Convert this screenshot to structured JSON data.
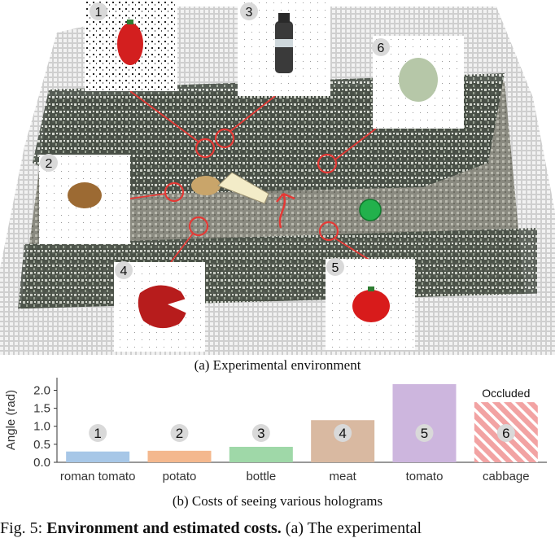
{
  "figure": {
    "caption_a": "(a) Experimental environment",
    "caption_b": "(b) Costs of seeing various holograms",
    "caption_label": "Fig. 5:",
    "caption_title": "Environment and estimated costs.",
    "caption_rest": "(a) The experimental"
  },
  "scene": {
    "hologram_numbers": [
      "1",
      "2",
      "3",
      "4",
      "5",
      "6"
    ],
    "marker_color": "#e53935",
    "goal_color": "#22b14c"
  },
  "chart_data": {
    "type": "bar",
    "categories": [
      "roman tomato",
      "potato",
      "bottle",
      "meat",
      "tomato",
      "cabbage"
    ],
    "values": [
      0.3,
      0.32,
      0.43,
      1.17,
      2.17,
      1.67
    ],
    "bar_labels": [
      "1",
      "2",
      "3",
      "4",
      "5",
      "6"
    ],
    "colors": [
      "#a7c7e7",
      "#f4b88e",
      "#9fd8a8",
      "#d9b9a1",
      "#cdb6de",
      "#f2a3a3"
    ],
    "hatched": [
      false,
      false,
      false,
      false,
      false,
      true
    ],
    "annotations": [
      {
        "category": "cabbage",
        "text": "Occluded"
      }
    ],
    "ylabel": "Angle (rad)",
    "yticks": [
      "0.0",
      "0.5",
      "1.0",
      "1.5",
      "2.0"
    ],
    "ylim": [
      0,
      2.35
    ],
    "grid": false
  }
}
